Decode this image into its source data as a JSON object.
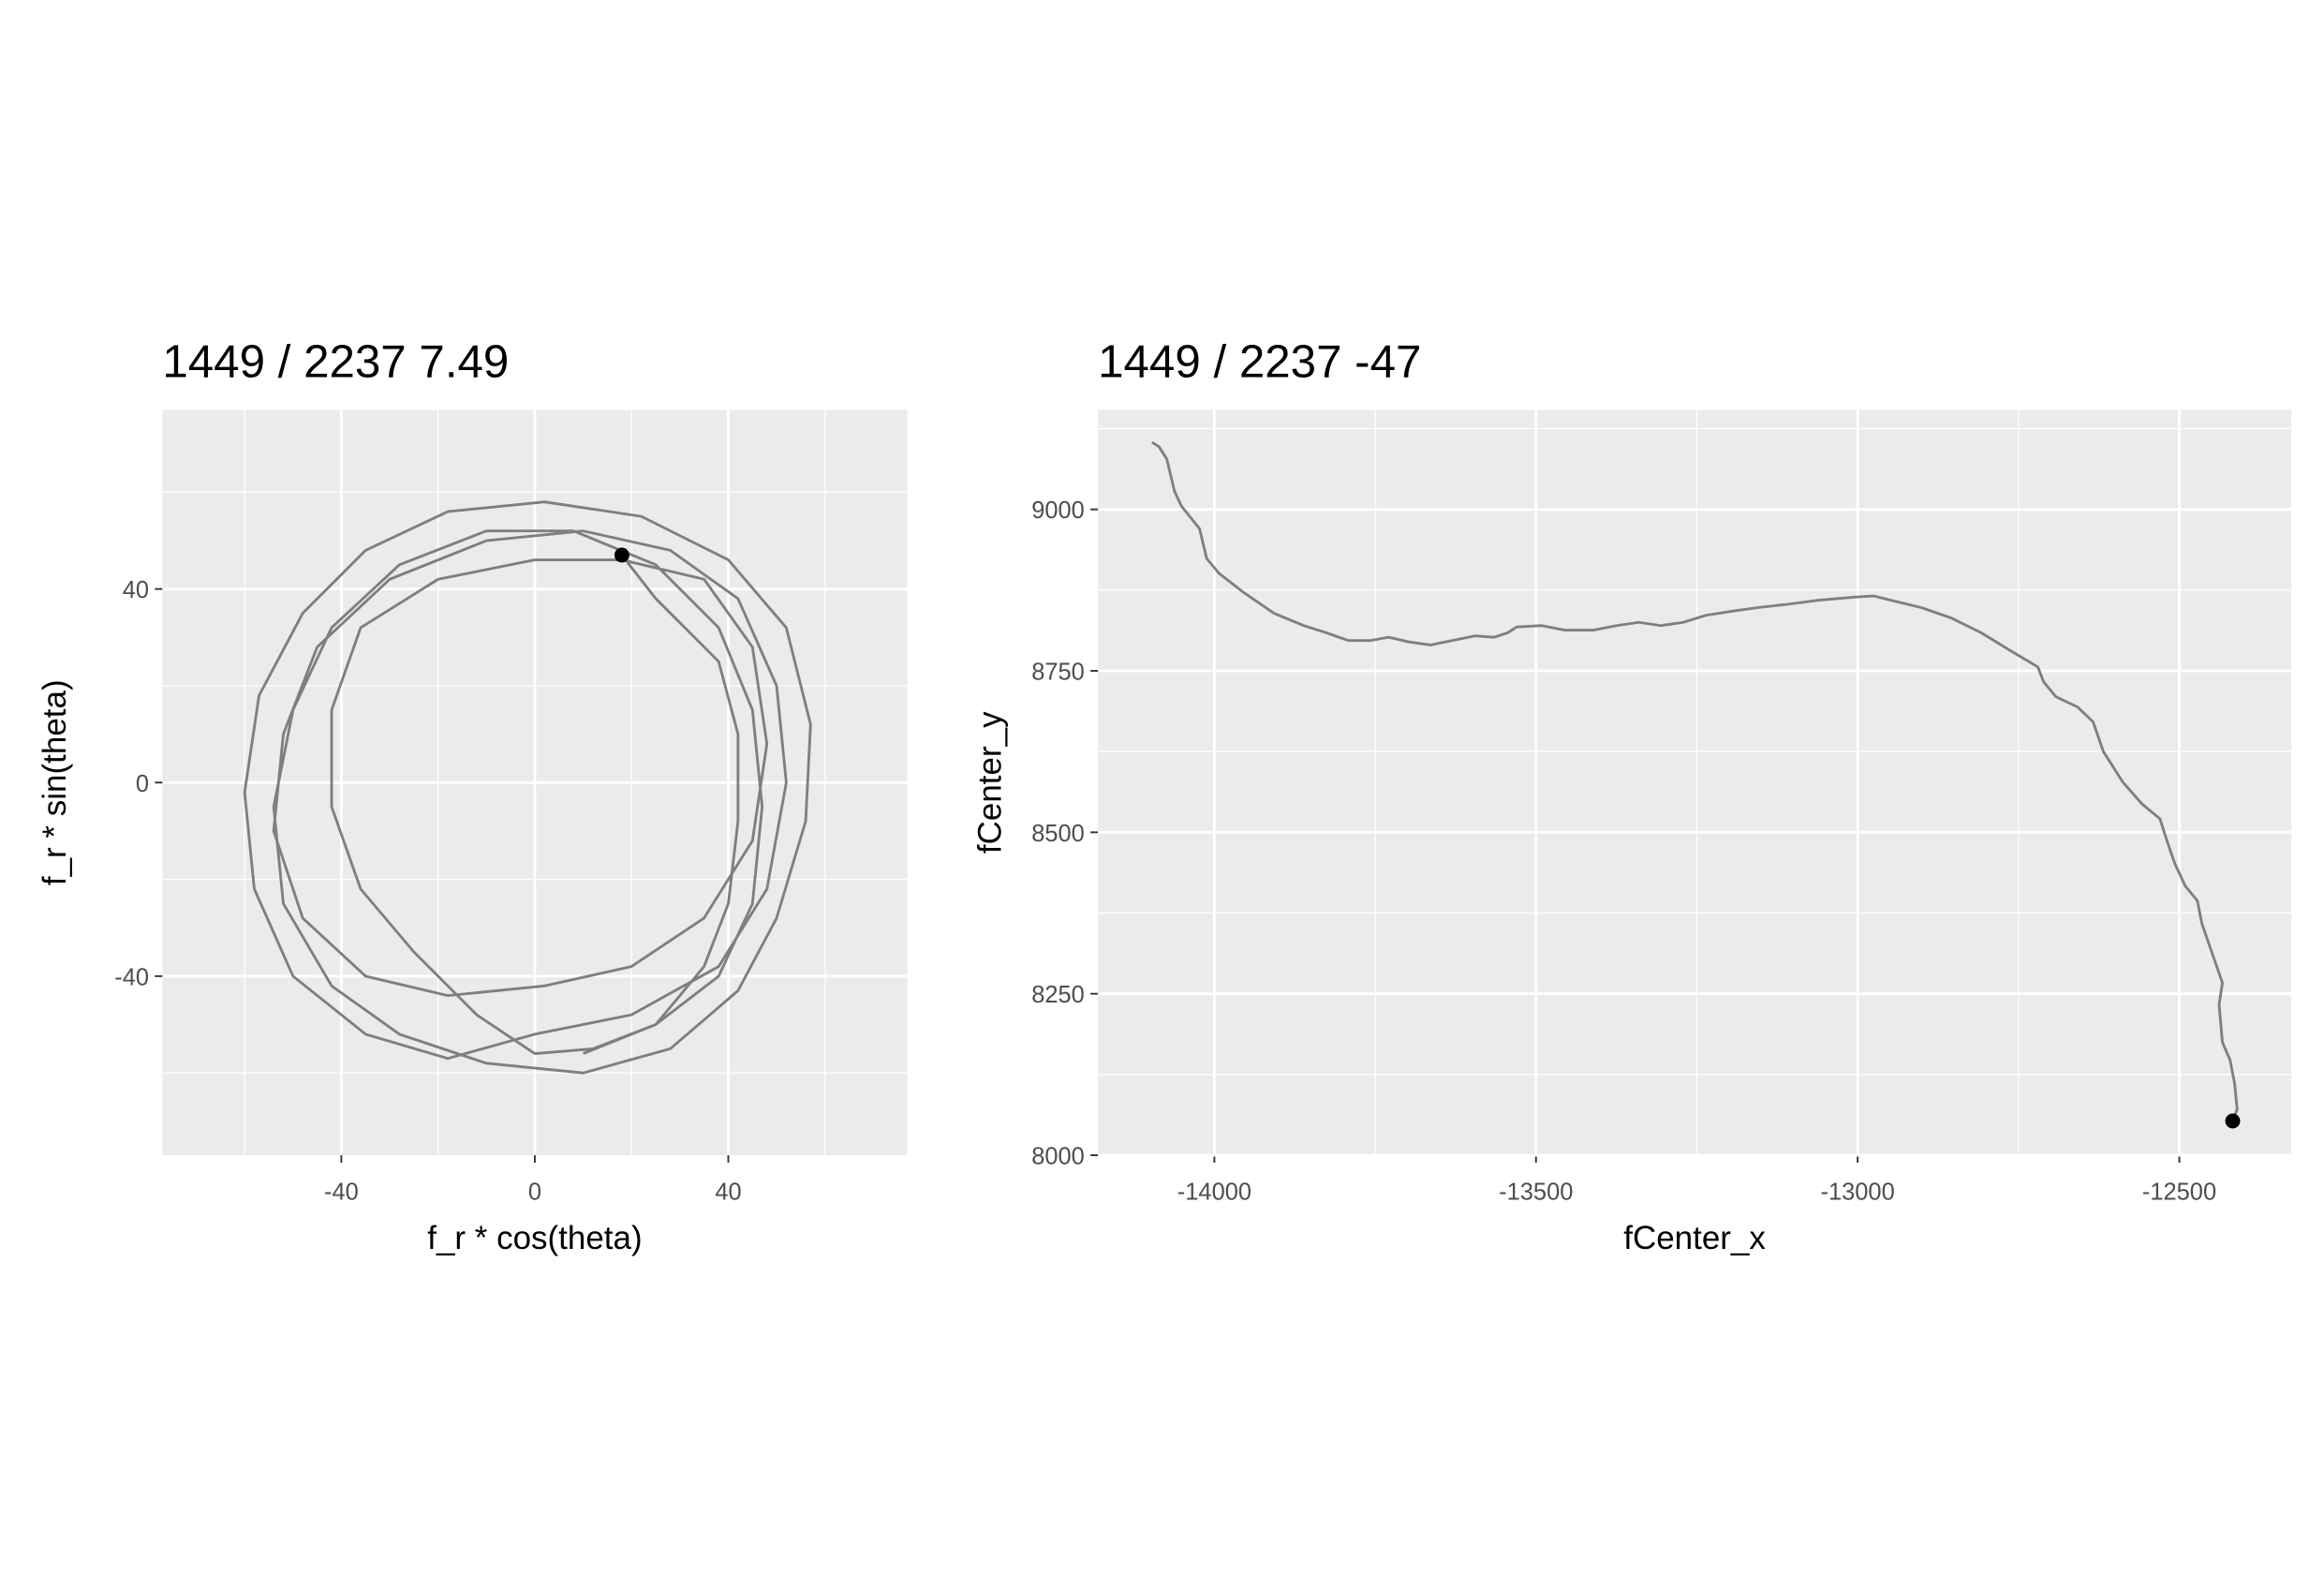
{
  "chart_data": [
    {
      "type": "path",
      "title": "1449 / 2237 7.49",
      "x_label": "f_r * cos(theta)",
      "y_label": "f_r * sin(theta)",
      "xlim": [
        -77,
        77
      ],
      "ylim": [
        -77,
        77
      ],
      "xticks": [
        -40,
        0,
        40
      ],
      "yticks": [
        -40,
        0,
        40
      ],
      "x_minor_ticks": [
        -60,
        -20,
        20,
        60
      ],
      "y_minor_ticks": [
        -60,
        -20,
        20,
        60
      ],
      "grid": true,
      "series": [
        {
          "color": "#7f7f7f",
          "x": [
            10,
            25,
            38,
            45,
            47,
            45,
            38,
            25,
            8,
            -10,
            -28,
            -42,
            -50,
            -54,
            -52,
            -42,
            -28,
            -10,
            10,
            28,
            42,
            50,
            56,
            57,
            52,
            40,
            22,
            2,
            -18,
            -35,
            -48,
            -57,
            -60,
            -58,
            -50,
            -35,
            -18,
            0,
            20,
            38,
            48,
            52,
            50,
            42,
            28,
            10,
            -10,
            -30,
            -45,
            -52,
            -54,
            -48,
            -35,
            -18,
            2,
            20,
            35,
            45,
            48,
            45,
            35,
            18,
            0,
            -20,
            -36,
            -42,
            -42,
            -36,
            -25,
            -12,
            0,
            12,
            25,
            35,
            40,
            42,
            42,
            38,
            25,
            18
          ],
          "y": [
            -56,
            -50,
            -40,
            -25,
            -5,
            15,
            32,
            45,
            52,
            52,
            45,
            32,
            15,
            -5,
            -25,
            -42,
            -52,
            -58,
            -60,
            -55,
            -43,
            -28,
            -8,
            12,
            32,
            46,
            55,
            58,
            56,
            48,
            35,
            18,
            -2,
            -22,
            -40,
            -52,
            -57,
            -52,
            -48,
            -38,
            -22,
            0,
            20,
            38,
            48,
            52,
            50,
            42,
            28,
            10,
            -10,
            -28,
            -40,
            -44,
            -42,
            -38,
            -28,
            -12,
            8,
            28,
            42,
            46,
            46,
            42,
            32,
            15,
            -5,
            -22,
            -35,
            -48,
            -56,
            -55,
            -50,
            -38,
            -25,
            -8,
            10,
            25,
            38,
            47
          ]
        }
      ],
      "points": {
        "color": "#000000",
        "x": [
          18
        ],
        "y": [
          47
        ]
      }
    },
    {
      "type": "path",
      "title": "1449 / 2237 -47",
      "x_label": "fCenter_x",
      "y_label": "fCenter_y",
      "xlim": [
        -14181,
        -12326
      ],
      "ylim": [
        8000,
        9154
      ],
      "xticks": [
        -14000,
        -13500,
        -13000,
        -12500
      ],
      "yticks": [
        8000,
        8250,
        8500,
        8750,
        9000
      ],
      "x_minor_ticks": [
        -13750,
        -13250,
        -12750
      ],
      "y_minor_ticks": [
        8125,
        8375,
        8625,
        8875,
        9125
      ],
      "grid": true,
      "series": [
        {
          "color": "#7f7f7f",
          "x": [
            -14097,
            -14086,
            -14074,
            -14062,
            -14051,
            -14023,
            -14012,
            -13993,
            -13954,
            -13907,
            -13861,
            -13826,
            -13792,
            -13757,
            -13729,
            -13699,
            -13664,
            -13630,
            -13595,
            -13565,
            -13544,
            -13530,
            -13491,
            -13456,
            -13410,
            -13375,
            -13340,
            -13306,
            -13271,
            -13236,
            -13190,
            -13155,
            -13109,
            -13063,
            -13005,
            -12975,
            -12947,
            -12901,
            -12855,
            -12808,
            -12762,
            -12720,
            -12711,
            -12692,
            -12658,
            -12634,
            -12618,
            -12588,
            -12558,
            -12530,
            -12519,
            -12507,
            -12491,
            -12472,
            -12465,
            -12449,
            -12433,
            -12438,
            -12433,
            -12421,
            -12414,
            -12410,
            -12417
          ],
          "y": [
            9104,
            9097,
            9078,
            9028,
            9005,
            8970,
            8924,
            8901,
            8871,
            8839,
            8820,
            8809,
            8797,
            8797,
            8802,
            8795,
            8790,
            8797,
            8804,
            8802,
            8809,
            8818,
            8820,
            8813,
            8813,
            8820,
            8825,
            8820,
            8825,
            8836,
            8843,
            8848,
            8853,
            8859,
            8864,
            8866,
            8859,
            8848,
            8832,
            8809,
            8781,
            8756,
            8733,
            8710,
            8694,
            8671,
            8625,
            8578,
            8544,
            8521,
            8486,
            8452,
            8417,
            8394,
            8359,
            8313,
            8267,
            8233,
            8175,
            8147,
            8111,
            8071,
            8053
          ]
        }
      ],
      "points": {
        "color": "#000000",
        "x": [
          -12417
        ],
        "y": [
          8053
        ]
      }
    }
  ]
}
